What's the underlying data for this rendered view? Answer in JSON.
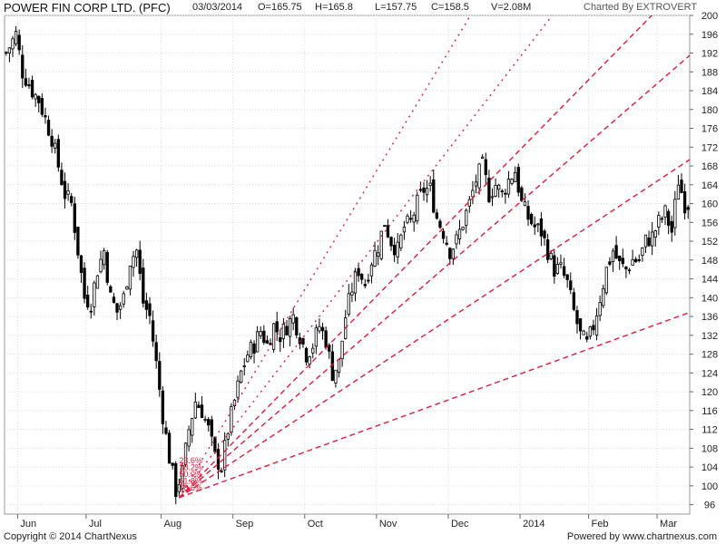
{
  "header": {
    "title": "POWER FIN CORP LTD. (PFC)",
    "date": "03/03/2014",
    "open": "O=165.75",
    "high": "H=165.8",
    "low": "L=157.75",
    "close": "C=158.5",
    "volume": "V=2.08M",
    "charted_by": "Charted By EXTROVERT"
  },
  "footer": {
    "copyright": "Copyright © 2014 ChartNexus",
    "powered_by": "Powered by www.chartnexus.com"
  },
  "chart_data": {
    "type": "candlestick",
    "y_ticks": [
      96,
      100,
      104,
      108,
      112,
      116,
      120,
      124,
      128,
      132,
      136,
      140,
      144,
      148,
      152,
      156,
      160,
      164,
      168,
      172,
      176,
      180,
      184,
      188,
      192,
      196,
      200
    ],
    "ylim": [
      94,
      200
    ],
    "x_labels": [
      "Jun",
      "Jul",
      "Aug",
      "Sep",
      "Oct",
      "Nov",
      "Dec",
      "2014",
      "Feb",
      "Mar"
    ],
    "x_label_index": [
      4,
      25,
      48,
      70,
      92,
      114,
      136,
      158,
      179,
      200
    ],
    "num_bars": 210,
    "grid": true,
    "colors": {
      "up": "#ffffff",
      "down": "#000000",
      "outline": "#000000",
      "fan": "#e8173c",
      "grid": "#dddddd"
    },
    "close_path": [
      [
        0,
        192
      ],
      [
        3,
        196
      ],
      [
        5,
        188
      ],
      [
        8,
        184
      ],
      [
        10,
        182
      ],
      [
        12,
        178
      ],
      [
        14,
        174
      ],
      [
        16,
        168
      ],
      [
        18,
        162
      ],
      [
        20,
        160
      ],
      [
        22,
        150
      ],
      [
        24,
        140
      ],
      [
        26,
        139
      ],
      [
        28,
        146
      ],
      [
        30,
        150
      ],
      [
        32,
        140
      ],
      [
        34,
        137
      ],
      [
        36,
        140
      ],
      [
        38,
        148
      ],
      [
        40,
        150
      ],
      [
        42,
        139
      ],
      [
        44,
        136
      ],
      [
        46,
        126
      ],
      [
        48,
        115
      ],
      [
        50,
        106
      ],
      [
        52,
        99
      ],
      [
        54,
        103
      ],
      [
        56,
        112
      ],
      [
        58,
        118
      ],
      [
        60,
        116
      ],
      [
        62,
        112
      ],
      [
        64,
        106
      ],
      [
        66,
        104
      ],
      [
        68,
        112
      ],
      [
        70,
        118
      ],
      [
        72,
        124
      ],
      [
        74,
        128
      ],
      [
        76,
        130
      ],
      [
        78,
        133
      ],
      [
        80,
        130
      ],
      [
        82,
        134
      ],
      [
        84,
        132
      ],
      [
        86,
        134
      ],
      [
        88,
        136
      ],
      [
        90,
        132
      ],
      [
        92,
        128
      ],
      [
        94,
        130
      ],
      [
        96,
        134
      ],
      [
        98,
        131
      ],
      [
        100,
        124
      ],
      [
        102,
        126
      ],
      [
        104,
        136
      ],
      [
        106,
        142
      ],
      [
        108,
        146
      ],
      [
        110,
        143
      ],
      [
        112,
        148
      ],
      [
        114,
        151
      ],
      [
        116,
        156
      ],
      [
        118,
        152
      ],
      [
        120,
        150
      ],
      [
        122,
        155
      ],
      [
        124,
        156
      ],
      [
        126,
        160
      ],
      [
        128,
        163
      ],
      [
        130,
        163
      ],
      [
        132,
        157
      ],
      [
        134,
        154
      ],
      [
        136,
        150
      ],
      [
        138,
        152
      ],
      [
        140,
        156
      ],
      [
        142,
        160
      ],
      [
        144,
        165
      ],
      [
        146,
        168
      ],
      [
        148,
        162
      ],
      [
        150,
        164
      ],
      [
        152,
        162
      ],
      [
        154,
        165
      ],
      [
        156,
        167
      ],
      [
        158,
        160
      ],
      [
        160,
        157
      ],
      [
        162,
        155
      ],
      [
        164,
        154
      ],
      [
        166,
        150
      ],
      [
        168,
        146
      ],
      [
        170,
        146
      ],
      [
        172,
        143
      ],
      [
        174,
        137
      ],
      [
        176,
        132
      ],
      [
        178,
        130
      ],
      [
        180,
        134
      ],
      [
        182,
        140
      ],
      [
        184,
        146
      ],
      [
        186,
        150
      ],
      [
        188,
        147
      ],
      [
        190,
        146
      ],
      [
        192,
        148
      ],
      [
        194,
        148
      ],
      [
        196,
        152
      ],
      [
        198,
        153
      ],
      [
        200,
        156
      ],
      [
        202,
        158
      ],
      [
        204,
        154
      ],
      [
        206,
        165
      ],
      [
        208,
        160
      ]
    ],
    "fan": {
      "origin": [
        53,
        97.5
      ],
      "levels": [
        "23.6%",
        "38.2%",
        "50.0%",
        "61.8%",
        "78.6%"
      ],
      "lines": [
        {
          "to": [
            212,
            137.5
          ],
          "style": "dash"
        },
        {
          "to": [
            212,
            170.5
          ],
          "style": "dash"
        },
        {
          "to": [
            212,
            193
          ],
          "style": "dash"
        },
        {
          "to": [
            212,
            210
          ],
          "style": "dash"
        },
        {
          "to": [
            212,
            240
          ],
          "style": "dot"
        },
        {
          "to": [
            212,
            280
          ],
          "style": "dot"
        }
      ]
    }
  }
}
